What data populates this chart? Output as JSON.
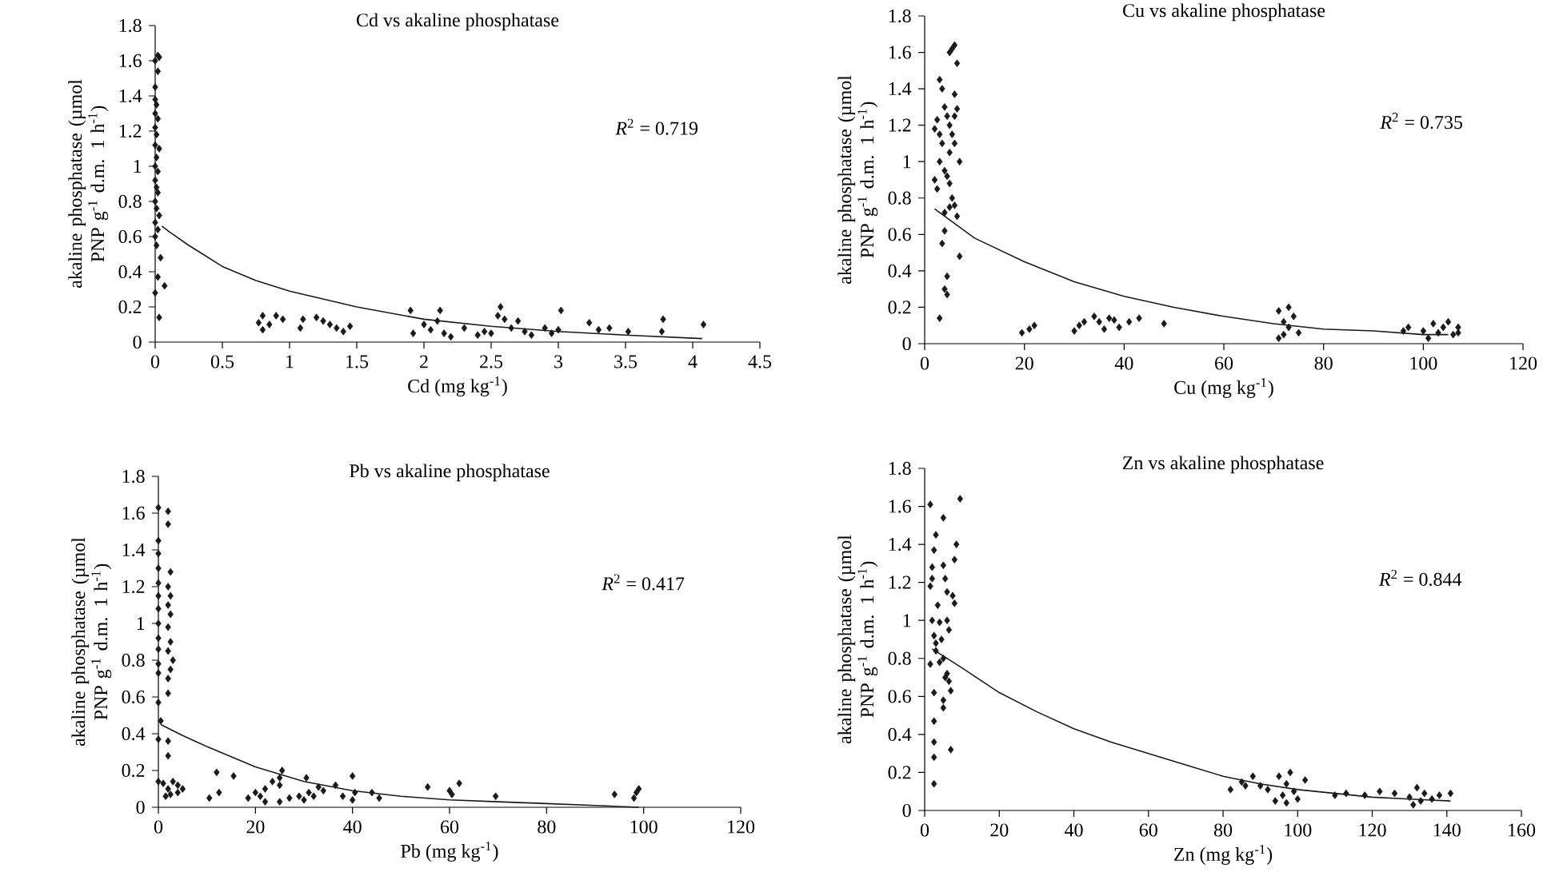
{
  "chart_data": [
    {
      "type": "scatter",
      "title": "Cd vs akaline phosphatase",
      "xlabel": "Cd (mg kg$^{-1}$)",
      "ylabel": "akaline phosphatase (µmol PNP g$^{-1}$ d.m. 1 h$^{-1}$)",
      "annotations": [
        "*R*$^{2}$ = 0.719"
      ],
      "xlim": [
        0,
        4.5
      ],
      "ylim": [
        0,
        1.8
      ],
      "xticks": [
        0,
        0.5,
        1,
        1.5,
        2,
        2.5,
        3,
        3.5,
        4,
        4.5
      ],
      "yticks": [
        0,
        0.2,
        0.4,
        0.6,
        0.8,
        1,
        1.2,
        1.4,
        1.6,
        1.8
      ],
      "series": [
        {
          "type": "scatter",
          "marker": "diamond",
          "color": "#1a1a1a",
          "x": [
            0,
            0.02,
            0.03,
            0.02,
            0,
            0,
            0.01,
            0,
            0.02,
            0,
            0.01,
            0,
            0.03,
            0.01,
            0,
            0.02,
            0,
            0.01,
            0.02,
            0,
            0.01,
            0.03,
            0,
            0.02,
            0,
            0.01,
            0.04,
            0.02,
            0,
            0.07,
            0.03,
            0.77,
            0.8,
            0.8,
            0.85,
            0.9,
            0.95,
            1.08,
            1.1,
            1.2,
            1.25,
            1.3,
            1.35,
            1.4,
            1.45,
            1.9,
            1.92,
            2,
            2.05,
            2.1,
            2.12,
            2.15,
            2.2,
            2.3,
            2.4,
            2.45,
            2.5,
            2.55,
            2.57,
            2.6,
            2.65,
            2.7,
            2.75,
            2.8,
            2.9,
            2.95,
            3.02,
            3,
            3.23,
            3.3,
            3.38,
            3.52,
            3.78,
            3.77,
            4.08
          ],
          "values": [
            1.6,
            1.63,
            1.62,
            1.54,
            1.45,
            1.38,
            1.35,
            1.3,
            1.27,
            1.22,
            1.18,
            1.12,
            1.1,
            1.05,
            1,
            0.97,
            0.92,
            0.88,
            0.85,
            0.8,
            0.76,
            0.72,
            0.68,
            0.64,
            0.6,
            0.55,
            0.48,
            0.37,
            0.28,
            0.32,
            0.14,
            0.11,
            0.07,
            0.15,
            0.1,
            0.15,
            0.13,
            0.08,
            0.13,
            0.14,
            0.12,
            0.1,
            0.08,
            0.06,
            0.09,
            0.18,
            0.05,
            0.1,
            0.07,
            0.12,
            0.18,
            0.05,
            0.03,
            0.08,
            0.04,
            0.06,
            0.05,
            0.15,
            0.2,
            0.13,
            0.08,
            0.12,
            0.06,
            0.04,
            0.08,
            0.05,
            0.18,
            0.07,
            0.11,
            0.07,
            0.08,
            0.06,
            0.13,
            0.06,
            0.1
          ]
        },
        {
          "type": "line",
          "color": "#1a1a1a",
          "x": [
            0.05,
            0.1,
            0.25,
            0.5,
            0.75,
            1,
            1.5,
            2,
            2.5,
            3,
            3.5,
            4.07
          ],
          "values": [
            0.66,
            0.63,
            0.55,
            0.43,
            0.35,
            0.29,
            0.2,
            0.13,
            0.09,
            0.06,
            0.04,
            0.02
          ]
        }
      ]
    },
    {
      "type": "scatter",
      "title": "Cu vs akaline phosphatase",
      "xlabel": "Cu (mg kg$^{-1}$)",
      "ylabel": "akaline phosphatase (µmol PNP g$^{-1}$ d.m. 1 h$^{-1}$)",
      "annotations": [
        "*R*$^{2}$ = 0.735"
      ],
      "xlim": [
        0,
        120
      ],
      "ylim": [
        0,
        1.8
      ],
      "xticks": [
        0,
        20,
        40,
        60,
        80,
        100,
        120
      ],
      "yticks": [
        0,
        0.2,
        0.4,
        0.6,
        0.8,
        1,
        1.2,
        1.4,
        1.6,
        1.8
      ],
      "series": [
        {
          "type": "scatter",
          "marker": "diamond",
          "color": "#1a1a1a",
          "x": [
            3,
            3.5,
            2,
            2.5,
            3,
            4,
            4.5,
            3.5,
            5,
            5.5,
            6,
            6.5,
            2,
            2.5,
            3,
            4,
            4.5,
            5,
            5.5,
            6,
            6.5,
            7,
            5,
            5.5,
            6,
            6.5,
            6,
            4,
            3.5,
            4.5,
            4,
            4.5,
            7,
            3,
            5,
            4,
            5,
            6,
            19.5,
            21,
            22,
            30,
            31,
            32,
            34,
            35,
            36,
            37,
            38,
            39,
            41,
            43,
            48,
            71,
            72,
            72,
            73,
            73,
            74,
            75,
            71,
            96,
            97,
            100,
            101,
            102,
            103,
            104,
            105,
            106,
            107,
            107
          ],
          "values": [
            1.45,
            1.4,
            1.18,
            1.23,
            1.15,
            1.3,
            1.25,
            1.1,
            1.2,
            1.15,
            1.25,
            1.29,
            0.9,
            0.85,
            1,
            0.95,
            0.92,
            0.88,
            0.8,
            0.76,
            0.7,
            1,
            1.6,
            1.62,
            1.64,
            1.54,
            1.37,
            0.62,
            0.55,
            0.37,
            0.3,
            0.27,
            0.48,
            0.14,
            0.75,
            0.72,
            1.05,
            1.1,
            0.06,
            0.08,
            0.1,
            0.07,
            0.1,
            0.12,
            0.15,
            0.12,
            0.08,
            0.14,
            0.13,
            0.09,
            0.12,
            0.14,
            0.11,
            0.18,
            0.12,
            0.05,
            0.2,
            0.09,
            0.15,
            0.06,
            0.03,
            0.07,
            0.09,
            0.07,
            0.03,
            0.11,
            0.06,
            0.09,
            0.12,
            0.05,
            0.09,
            0.06
          ]
        },
        {
          "type": "line",
          "color": "#1a1a1a",
          "x": [
            2,
            10,
            20,
            30,
            40,
            50,
            60,
            70,
            80,
            90,
            100,
            105
          ],
          "values": [
            0.74,
            0.58,
            0.45,
            0.34,
            0.26,
            0.2,
            0.15,
            0.11,
            0.08,
            0.07,
            0.05,
            0.05
          ]
        }
      ]
    },
    {
      "type": "scatter",
      "title": "Pb vs akaline phosphatase",
      "xlabel": "Pb (mg kg$^{-1}$)",
      "ylabel": "akaline phosphatase (µmol PNP g$^{-1}$ d.m. 1 h$^{-1}$)",
      "annotations": [
        "*R*$^{2}$ = 0.417"
      ],
      "xlim": [
        0,
        120
      ],
      "ylim": [
        0,
        1.8
      ],
      "xticks": [
        0,
        20,
        40,
        60,
        80,
        100,
        120
      ],
      "yticks": [
        0,
        0.2,
        0.4,
        0.6,
        0.8,
        1,
        1.2,
        1.4,
        1.6,
        1.8
      ],
      "series": [
        {
          "type": "scatter",
          "marker": "diamond",
          "color": "#1a1a1a",
          "x": [
            0,
            0,
            0,
            0,
            0,
            0,
            0,
            0,
            0,
            0,
            0,
            0,
            0,
            0.5,
            0,
            0,
            2,
            2,
            2.5,
            2,
            2.5,
            2,
            2.5,
            2,
            2.5,
            2,
            3,
            2.5,
            2,
            2,
            2,
            2,
            1,
            2,
            3,
            4,
            5,
            2.5,
            4,
            1.5,
            10.5,
            12,
            12.5,
            15.5,
            18.5,
            20,
            21,
            22,
            22,
            23.5,
            25,
            25.5,
            25,
            25,
            27,
            29,
            30,
            30.5,
            31,
            32,
            33,
            34,
            36.5,
            38,
            40,
            40,
            40.5,
            44,
            45.5,
            55.5,
            60,
            60.5,
            62,
            69.5,
            94,
            98,
            99,
            98.5
          ],
          "values": [
            1.63,
            1.45,
            1.38,
            1.3,
            1.22,
            1.15,
            1.08,
            1,
            0.92,
            0.86,
            0.78,
            0.73,
            0.57,
            0.47,
            0.37,
            0.14,
            1.61,
            1.54,
            1.28,
            1.2,
            1.15,
            1.1,
            1.05,
            0.98,
            0.9,
            0.85,
            0.8,
            0.75,
            0.7,
            0.62,
            0.36,
            0.28,
            0.13,
            0.1,
            0.14,
            0.12,
            0.1,
            0.07,
            0.08,
            0.06,
            0.05,
            0.19,
            0.08,
            0.17,
            0.05,
            0.08,
            0.06,
            0.1,
            0.03,
            0.14,
            0.16,
            0.2,
            0.12,
            0.03,
            0.05,
            0.06,
            0.04,
            0.16,
            0.08,
            0.06,
            0.11,
            0.09,
            0.12,
            0.06,
            0.17,
            0.04,
            0.08,
            0.08,
            0.05,
            0.11,
            0.09,
            0.07,
            0.13,
            0.06,
            0.07,
            0.05,
            0.1,
            0.08
          ]
        },
        {
          "type": "line",
          "color": "#1a1a1a",
          "x": [
            0.5,
            5,
            10,
            20,
            30,
            40,
            50,
            60,
            70,
            80,
            90,
            99
          ],
          "values": [
            0.45,
            0.39,
            0.33,
            0.22,
            0.14,
            0.09,
            0.06,
            0.04,
            0.03,
            0.02,
            0.01,
            0
          ]
        }
      ]
    },
    {
      "type": "scatter",
      "title": "Zn vs akaline phosphatase",
      "xlabel": "Zn (mg kg$^{-1}$)",
      "ylabel": "akaline phosphatase (µmol PNP g$^{-1}$ d.m. 1 h$^{-1}$)",
      "annotations": [
        "*R*$^{2}$ = 0.844"
      ],
      "xlim": [
        0,
        160
      ],
      "ylim": [
        0,
        1.8
      ],
      "xticks": [
        0,
        20,
        40,
        60,
        80,
        100,
        120,
        140,
        160
      ],
      "yticks": [
        0,
        0.2,
        0.4,
        0.6,
        0.8,
        1,
        1.2,
        1.4,
        1.6,
        1.8
      ],
      "series": [
        {
          "type": "scatter",
          "marker": "diamond",
          "color": "#1a1a1a",
          "x": [
            1.5,
            2,
            2,
            1.5,
            2.5,
            3,
            2,
            2.5,
            1.5,
            3,
            3.5,
            4,
            4.5,
            5,
            5,
            5.5,
            6,
            6,
            6.5,
            5,
            5.5,
            5,
            5,
            6,
            6.5,
            7,
            7.5,
            8,
            8,
            8.5,
            9.5,
            2.5,
            2.5,
            2.5,
            2.5,
            2.5,
            7,
            4,
            3,
            82,
            85,
            86,
            88,
            90,
            92,
            94,
            95,
            96,
            97,
            98,
            97,
            99,
            100,
            102,
            110,
            113,
            118,
            122,
            126,
            130,
            131,
            132,
            133,
            134,
            136,
            138,
            141
          ],
          "values": [
            1.61,
            1.28,
            1.22,
            1.18,
            1.37,
            1.45,
            1,
            0.92,
            0.77,
            0.88,
            1.08,
            0.99,
            0.9,
            1.29,
            1.54,
            1.22,
            1.15,
            1,
            0.95,
            0.8,
            0.7,
            0.58,
            0.54,
            0.72,
            0.68,
            0.63,
            1.13,
            1.09,
            1.32,
            1.4,
            1.64,
            0.62,
            0.47,
            0.36,
            0.28,
            0.14,
            0.32,
            0.78,
            0.84,
            0.11,
            0.15,
            0.13,
            0.18,
            0.13,
            0.11,
            0.05,
            0.18,
            0.08,
            0.04,
            0.2,
            0.14,
            0.1,
            0.06,
            0.16,
            0.08,
            0.09,
            0.08,
            0.1,
            0.09,
            0.07,
            0.03,
            0.12,
            0.05,
            0.09,
            0.06,
            0.08,
            0.09
          ]
        },
        {
          "type": "line",
          "color": "#1a1a1a",
          "x": [
            2,
            10,
            20,
            30,
            40,
            50,
            60,
            70,
            80,
            90,
            100,
            110,
            120,
            130,
            141
          ],
          "values": [
            0.85,
            0.75,
            0.62,
            0.52,
            0.43,
            0.36,
            0.3,
            0.24,
            0.18,
            0.14,
            0.11,
            0.09,
            0.07,
            0.06,
            0.05
          ]
        }
      ]
    }
  ]
}
